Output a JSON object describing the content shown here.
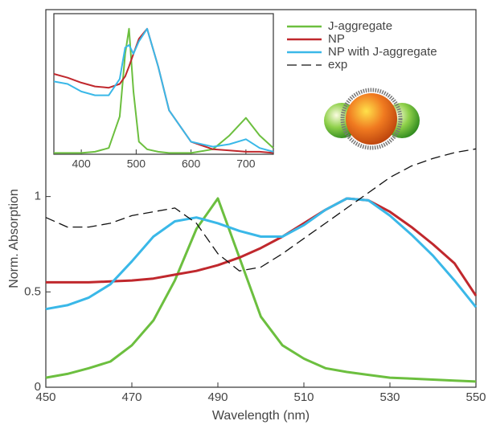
{
  "chart_data": [
    {
      "type": "line",
      "x_label": "Wavelength (nm)",
      "y_label": "Norm. Absorption",
      "x": [
        450,
        455,
        460,
        465,
        470,
        475,
        480,
        485,
        490,
        495,
        500,
        505,
        510,
        515,
        520,
        525,
        530,
        535,
        540,
        545,
        550
      ],
      "series": [
        {
          "name": "J-aggregate",
          "color": "#6cbf3f",
          "values": [
            0.05,
            0.07,
            0.1,
            0.135,
            0.22,
            0.35,
            0.56,
            0.83,
            0.99,
            0.68,
            0.37,
            0.22,
            0.15,
            0.1,
            0.08,
            0.065,
            0.05,
            0.045,
            0.04,
            0.035,
            0.03
          ]
        },
        {
          "name": "NP",
          "color": "#c0282d",
          "values": [
            0.55,
            0.55,
            0.55,
            0.555,
            0.56,
            0.57,
            0.59,
            0.61,
            0.64,
            0.68,
            0.73,
            0.79,
            0.86,
            0.93,
            0.99,
            0.98,
            0.92,
            0.84,
            0.75,
            0.65,
            0.48
          ]
        },
        {
          "name": "NP with J-aggregate",
          "color": "#3ab8e8",
          "values": [
            0.41,
            0.43,
            0.47,
            0.54,
            0.66,
            0.79,
            0.87,
            0.89,
            0.86,
            0.82,
            0.79,
            0.79,
            0.85,
            0.93,
            0.99,
            0.98,
            0.9,
            0.8,
            0.69,
            0.56,
            0.42
          ]
        },
        {
          "name": "exp",
          "color": "#111111",
          "style": "dashed",
          "values": [
            0.89,
            0.84,
            0.84,
            0.86,
            0.9,
            0.92,
            0.94,
            0.86,
            0.7,
            0.61,
            0.63,
            0.7,
            0.78,
            0.86,
            0.94,
            1.02,
            1.1,
            1.16,
            1.2,
            1.23,
            1.25
          ]
        }
      ],
      "xlim": [
        450,
        550
      ],
      "xticks": [
        450,
        470,
        490,
        510,
        530,
        550
      ],
      "ylim": [
        0,
        1.98
      ],
      "yticks": [
        0,
        0.5,
        1
      ]
    },
    {
      "type": "line",
      "x": [
        350,
        375,
        400,
        425,
        450,
        470,
        480,
        487,
        495,
        505,
        520,
        540,
        560,
        600,
        640,
        670,
        700,
        725,
        750
      ],
      "series": [
        {
          "color": "#6cbf3f",
          "values": [
            0.01,
            0.01,
            0.01,
            0.02,
            0.05,
            0.3,
            0.8,
            1.0,
            0.5,
            0.1,
            0.04,
            0.02,
            0.01,
            0.01,
            0.04,
            0.15,
            0.29,
            0.15,
            0.05
          ]
        },
        {
          "color": "#c0282d",
          "values": [
            0.64,
            0.61,
            0.57,
            0.54,
            0.53,
            0.56,
            0.62,
            0.7,
            0.8,
            0.92,
            1.0,
            0.7,
            0.35,
            0.1,
            0.04,
            0.03,
            0.02,
            0.02,
            0.01
          ]
        },
        {
          "color": "#3ab8e8",
          "values": [
            0.58,
            0.56,
            0.5,
            0.47,
            0.47,
            0.6,
            0.85,
            0.87,
            0.8,
            0.9,
            1.0,
            0.7,
            0.35,
            0.1,
            0.06,
            0.08,
            0.12,
            0.05,
            0.02
          ]
        }
      ],
      "xlim": [
        350,
        750
      ],
      "xticks": [
        400,
        500,
        600,
        700
      ],
      "ylim": [
        0,
        1.12
      ]
    }
  ]
}
